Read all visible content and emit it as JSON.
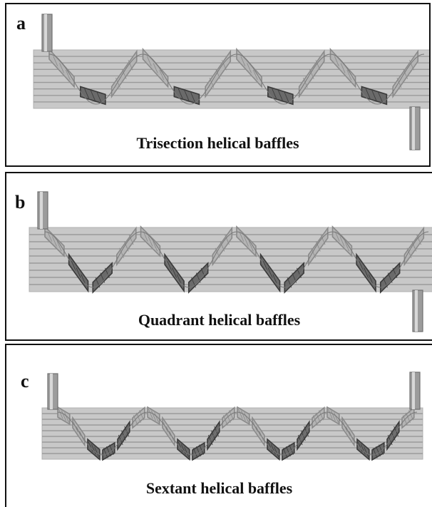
{
  "panels": [
    {
      "letter": "a",
      "caption": "Trisection helical baffles",
      "baffle_type": "trisection",
      "pitches": 4
    },
    {
      "letter": "b",
      "caption": "Quadrant helical baffles",
      "baffle_type": "quadrant",
      "pitches": 4
    },
    {
      "letter": "c",
      "caption": "Sextant helical baffles",
      "baffle_type": "sextant",
      "pitches": 4
    }
  ],
  "colors": {
    "shell": "#c8c8c8",
    "tube_line": "#9a9a9a",
    "baffle_light": "#8a8a8a",
    "baffle_dark": "#3a3a3a",
    "nozzle": "#9c9c9c"
  }
}
